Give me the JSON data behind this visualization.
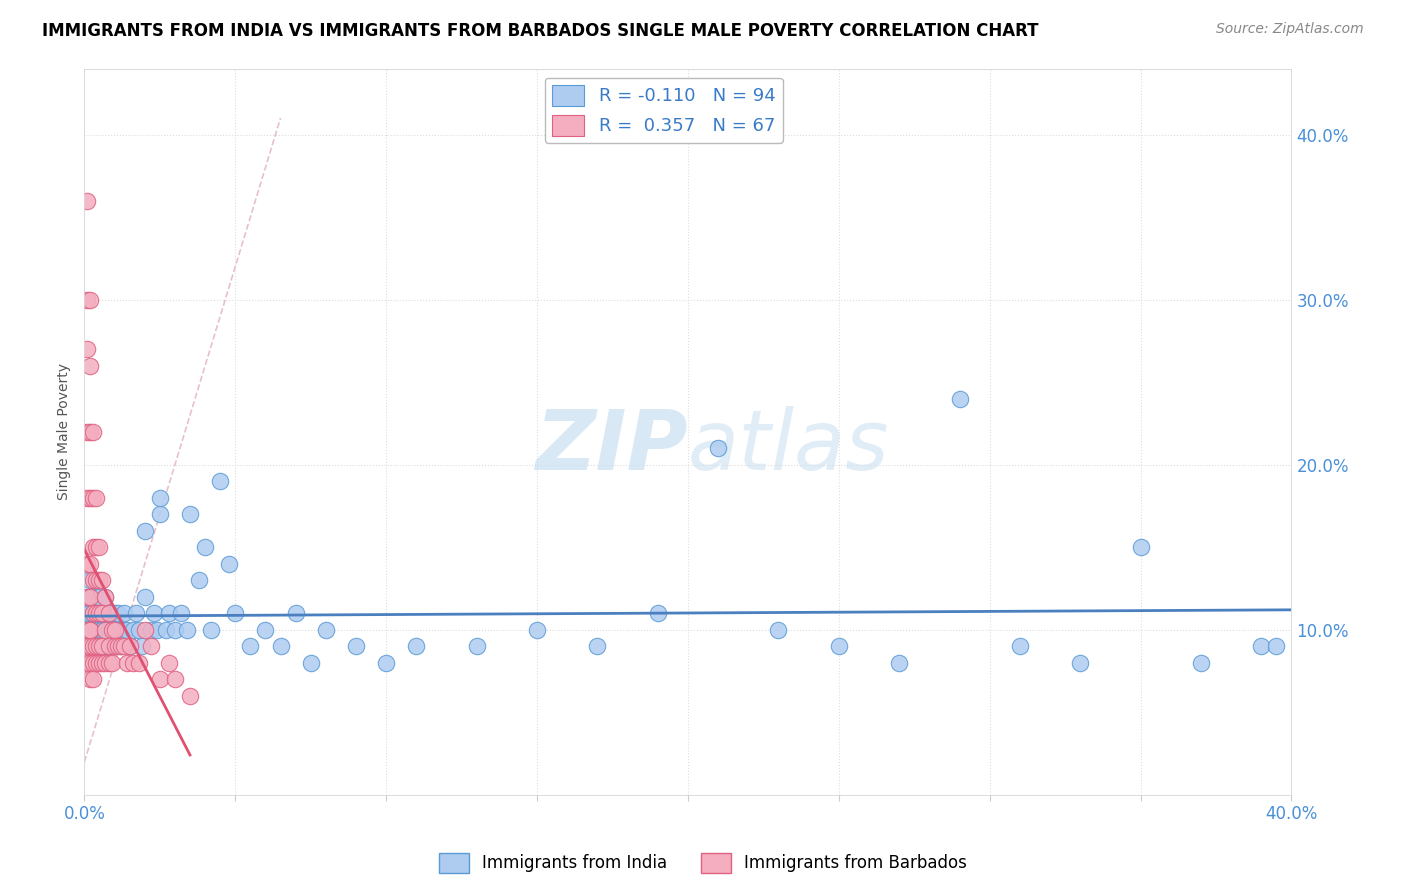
{
  "title": "IMMIGRANTS FROM INDIA VS IMMIGRANTS FROM BARBADOS SINGLE MALE POVERTY CORRELATION CHART",
  "source": "Source: ZipAtlas.com",
  "ylabel": "Single Male Poverty",
  "legend_india_R": "-0.110",
  "legend_india_N": "94",
  "legend_barbados_R": "0.357",
  "legend_barbados_N": "67",
  "color_india_fill": "#aeccf0",
  "color_india_edge": "#5b9bd5",
  "color_barbados_fill": "#f4aec0",
  "color_barbados_edge": "#e06080",
  "color_india_line": "#4a7fc0",
  "color_barbados_line": "#e05070",
  "color_ref_line": "#e0b0c0",
  "watermark_color": "#c8dff0",
  "xlim": [
    0.0,
    0.4
  ],
  "ylim": [
    0.0,
    0.44
  ],
  "ytick_vals": [
    0.1,
    0.2,
    0.3,
    0.4
  ],
  "ytick_labels": [
    "10.0%",
    "20.0%",
    "30.0%",
    "40.0%"
  ],
  "india_x": [
    0.001,
    0.001,
    0.001,
    0.002,
    0.002,
    0.002,
    0.002,
    0.002,
    0.003,
    0.003,
    0.003,
    0.003,
    0.003,
    0.004,
    0.004,
    0.004,
    0.004,
    0.004,
    0.005,
    0.005,
    0.005,
    0.005,
    0.006,
    0.006,
    0.006,
    0.006,
    0.007,
    0.007,
    0.007,
    0.007,
    0.008,
    0.008,
    0.008,
    0.009,
    0.009,
    0.009,
    0.01,
    0.01,
    0.01,
    0.011,
    0.011,
    0.012,
    0.012,
    0.013,
    0.013,
    0.014,
    0.015,
    0.016,
    0.017,
    0.018,
    0.019,
    0.02,
    0.022,
    0.023,
    0.024,
    0.025,
    0.027,
    0.028,
    0.03,
    0.032,
    0.034,
    0.035,
    0.038,
    0.04,
    0.042,
    0.045,
    0.048,
    0.05,
    0.055,
    0.06,
    0.065,
    0.07,
    0.075,
    0.08,
    0.09,
    0.1,
    0.11,
    0.13,
    0.15,
    0.17,
    0.19,
    0.21,
    0.23,
    0.25,
    0.27,
    0.29,
    0.31,
    0.33,
    0.35,
    0.37,
    0.39,
    0.395,
    0.02,
    0.025
  ],
  "india_y": [
    0.11,
    0.12,
    0.1,
    0.11,
    0.09,
    0.12,
    0.1,
    0.13,
    0.1,
    0.11,
    0.09,
    0.12,
    0.1,
    0.11,
    0.09,
    0.1,
    0.12,
    0.11,
    0.1,
    0.11,
    0.09,
    0.12,
    0.1,
    0.11,
    0.09,
    0.1,
    0.11,
    0.09,
    0.1,
    0.12,
    0.1,
    0.11,
    0.09,
    0.1,
    0.11,
    0.09,
    0.1,
    0.11,
    0.09,
    0.1,
    0.11,
    0.1,
    0.09,
    0.1,
    0.11,
    0.1,
    0.09,
    0.1,
    0.11,
    0.1,
    0.09,
    0.12,
    0.1,
    0.11,
    0.1,
    0.17,
    0.1,
    0.11,
    0.1,
    0.11,
    0.1,
    0.17,
    0.13,
    0.15,
    0.1,
    0.19,
    0.14,
    0.11,
    0.09,
    0.1,
    0.09,
    0.11,
    0.08,
    0.1,
    0.09,
    0.08,
    0.09,
    0.09,
    0.1,
    0.09,
    0.11,
    0.21,
    0.1,
    0.09,
    0.08,
    0.24,
    0.09,
    0.08,
    0.15,
    0.08,
    0.09,
    0.09,
    0.16,
    0.18
  ],
  "barbados_x": [
    0.001,
    0.001,
    0.001,
    0.001,
    0.001,
    0.001,
    0.001,
    0.001,
    0.001,
    0.001,
    0.002,
    0.002,
    0.002,
    0.002,
    0.002,
    0.002,
    0.002,
    0.002,
    0.002,
    0.002,
    0.002,
    0.003,
    0.003,
    0.003,
    0.003,
    0.003,
    0.003,
    0.003,
    0.003,
    0.004,
    0.004,
    0.004,
    0.004,
    0.004,
    0.004,
    0.005,
    0.005,
    0.005,
    0.005,
    0.005,
    0.006,
    0.006,
    0.006,
    0.006,
    0.007,
    0.007,
    0.007,
    0.008,
    0.008,
    0.008,
    0.009,
    0.009,
    0.01,
    0.01,
    0.011,
    0.012,
    0.013,
    0.014,
    0.015,
    0.016,
    0.018,
    0.02,
    0.022,
    0.025,
    0.028,
    0.03,
    0.035
  ],
  "barbados_y": [
    0.36,
    0.3,
    0.27,
    0.22,
    0.18,
    0.14,
    0.12,
    0.1,
    0.09,
    0.08,
    0.3,
    0.26,
    0.22,
    0.18,
    0.14,
    0.12,
    0.1,
    0.09,
    0.08,
    0.07,
    0.1,
    0.22,
    0.18,
    0.15,
    0.13,
    0.11,
    0.09,
    0.08,
    0.07,
    0.18,
    0.15,
    0.13,
    0.11,
    0.09,
    0.08,
    0.15,
    0.13,
    0.11,
    0.09,
    0.08,
    0.13,
    0.11,
    0.09,
    0.08,
    0.12,
    0.1,
    0.08,
    0.11,
    0.09,
    0.08,
    0.1,
    0.08,
    0.1,
    0.09,
    0.09,
    0.09,
    0.09,
    0.08,
    0.09,
    0.08,
    0.08,
    0.1,
    0.09,
    0.07,
    0.08,
    0.07,
    0.06
  ]
}
